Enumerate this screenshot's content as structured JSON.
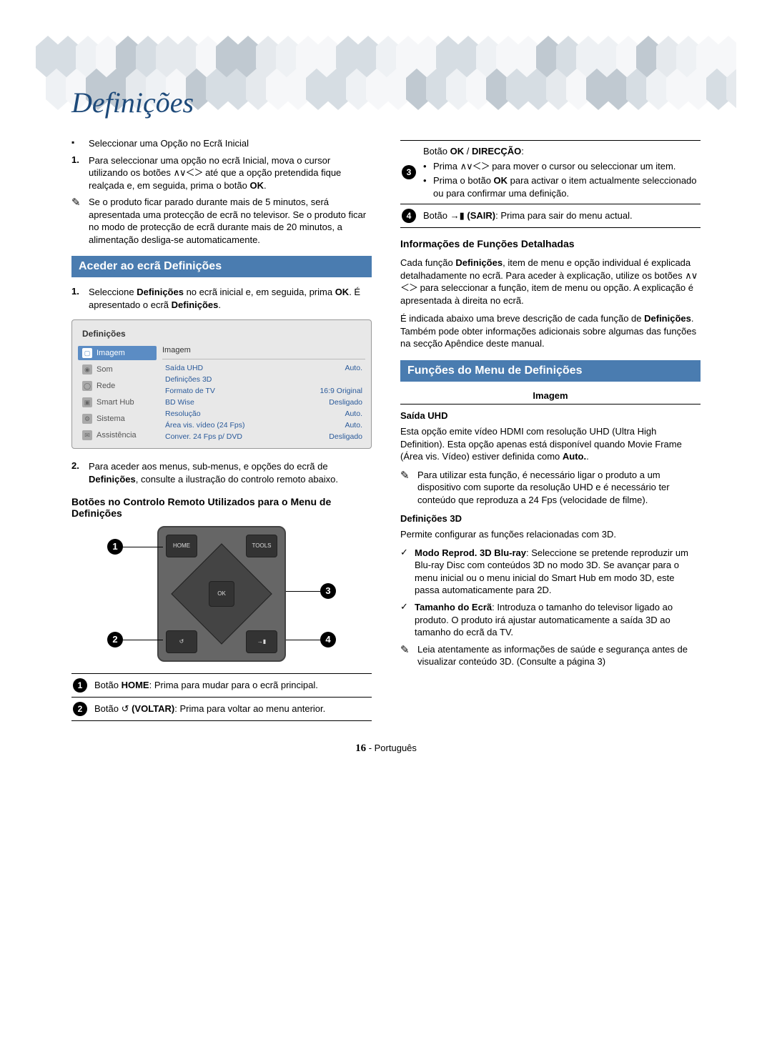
{
  "page": {
    "title": "Definições",
    "footer_page": "16",
    "footer_sep": " - ",
    "footer_lang": "Português"
  },
  "glyphs": {
    "dirs": "∧∨＜＞",
    "note": "✎",
    "check": "✓",
    "return": "↺",
    "exit": "→▮"
  },
  "geo": {
    "colors": [
      "#c0c9d1",
      "#d6dde3",
      "#e5e9ed",
      "#eef1f4",
      "#f6f7f9"
    ]
  },
  "left": {
    "intro_bullet": "Seleccionar uma Opção no Ecrã Inicial",
    "intro_num_pre": "Para seleccionar uma opção no ecrã Inicial, mova o cursor utilizando os botões ",
    "intro_num_post": " até que a opção pretendida fique realçada e, em seguida, prima o botão ",
    "ok": "OK",
    "intro_num_end": ".",
    "screensaver_note": "Se o produto ficar parado durante mais de 5 minutos, será apresentada uma protecção de ecrã no televisor. Se o produto ficar no modo de protecção de ecrã durante mais de 20 minutos, a alimentação desliga-se automaticamente.",
    "access_heading": "Aceder ao ecrã Definições",
    "step1_pre": "Seleccione ",
    "step1_b1": "Definições",
    "step1_mid": " no ecrã inicial e, em seguida, prima ",
    "step1_b2": "OK",
    "step1_post": ". É apresentado o ecrã ",
    "step1_b3": "Definições",
    "step1_end": ".",
    "step2_pre": "Para aceder aos menus, sub-menus, e opções do ecrã de ",
    "step2_b1": "Definições",
    "step2_post": ", consulte a ilustração do controlo remoto abaixo.",
    "remote_heading": "Botões no Controlo Remoto Utilizados para o Menu de Definições",
    "table": [
      {
        "n": "1",
        "pre": "Botão ",
        "b": "HOME",
        "post": ": Prima para mudar para o ecrã principal."
      },
      {
        "n": "2",
        "pre": "Botão ",
        "glyph": "↺",
        "b": " (VOLTAR)",
        "post": ": Prima para voltar ao menu anterior."
      }
    ]
  },
  "right_table": [
    {
      "n": "3",
      "lines": [
        {
          "kind": "head",
          "pre": "Botão ",
          "b": "OK",
          "mid": " / ",
          "b2": "DIRECÇÃO",
          "post": ":"
        },
        {
          "kind": "bul",
          "pre": "Prima ",
          "dirs": true,
          "post": " para mover o cursor ou seleccionar um item."
        },
        {
          "kind": "bul",
          "pre": "Prima o botão ",
          "b": "OK",
          "post": " para activar o item actualmente seleccionado ou para confirmar uma definição."
        }
      ]
    },
    {
      "n": "4",
      "lines": [
        {
          "kind": "plain",
          "pre": "Botão ",
          "glyph": "→▮",
          "b": " (SAIR)",
          "post": ": Prima para sair do menu actual."
        }
      ]
    }
  ],
  "right": {
    "info_heading": "Informações de Funções Detalhadas",
    "info_p1_pre": "Cada função ",
    "info_p1_b": "Definições",
    "info_p1_mid": ", item de menu e opção individual é explicada detalhadamente no ecrã. Para aceder à explicação, utilize os botões ",
    "info_p1_post": " para seleccionar a função, item de menu ou opção. A explicação é apresentada à direita no ecrã.",
    "info_p2_pre": "É indicada abaixo uma breve descrição de cada função de ",
    "info_p2_b": "Definições",
    "info_p2_post": ". Também pode obter informações adicionais sobre algumas das funções na secção Apêndice deste manual.",
    "menu_heading": "Funções do Menu de Definições",
    "img_heading": "Imagem",
    "uhd_label": "Saída UHD",
    "uhd_p_pre": "Esta opção emite vídeo HDMI com resolução UHD (Ultra High Definition). Esta opção apenas está disponível quando Movie Frame (Área vis. Vídeo) estiver definida como ",
    "uhd_p_b": "Auto.",
    "uhd_p_end": ".",
    "uhd_note": "Para utilizar esta função, é necessário ligar o produto a um dispositivo com suporte da resolução UHD e é necessário ter conteúdo que reproduza a 24 Fps (velocidade de filme).",
    "d3_label": "Definições 3D",
    "d3_p": "Permite configurar as funções relacionadas com 3D.",
    "d3_items": [
      {
        "b": "Modo Reprod. 3D Blu-ray",
        "post": ": Seleccione se pretende reproduzir um Blu-ray Disc com conteúdos 3D no modo 3D. Se avançar para o menu inicial ou o menu inicial do Smart Hub em modo 3D, este passa automaticamente para 2D."
      },
      {
        "b": "Tamanho do Ecrã",
        "post": ": Introduza o tamanho do televisor ligado ao produto. O produto irá ajustar automaticamente a saída 3D ao tamanho do ecrã da TV."
      }
    ],
    "d3_note": "Leia atentamente as informações de saúde e segurança antes de visualizar conteúdo 3D. (Consulte a página 3)"
  },
  "tvui": {
    "title": "Definições",
    "main_title": "Imagem",
    "nav": [
      {
        "label": "Imagem",
        "sel": true,
        "icon": "▢"
      },
      {
        "label": "Som",
        "sel": false,
        "icon": "◉"
      },
      {
        "label": "Rede",
        "sel": false,
        "icon": "◯"
      },
      {
        "label": "Smart Hub",
        "sel": false,
        "icon": "▣"
      },
      {
        "label": "Sistema",
        "sel": false,
        "icon": "⚙"
      },
      {
        "label": "Assistência",
        "sel": false,
        "icon": "✉"
      }
    ],
    "rows": [
      {
        "l": "Saída UHD",
        "v": "Auto."
      },
      {
        "l": "Definições 3D",
        "v": ""
      },
      {
        "l": "Formato de TV",
        "v": "16:9 Original"
      },
      {
        "l": "BD Wise",
        "v": "Desligado"
      },
      {
        "l": "Resolução",
        "v": "Auto."
      },
      {
        "l": "Área vis. vídeo (24 Fps)",
        "v": "Auto."
      },
      {
        "l": "Conver. 24 Fps p/ DVD",
        "v": "Desligado"
      }
    ]
  },
  "remote": {
    "home": "HOME",
    "tools": "TOOLS",
    "ok": "OK"
  }
}
